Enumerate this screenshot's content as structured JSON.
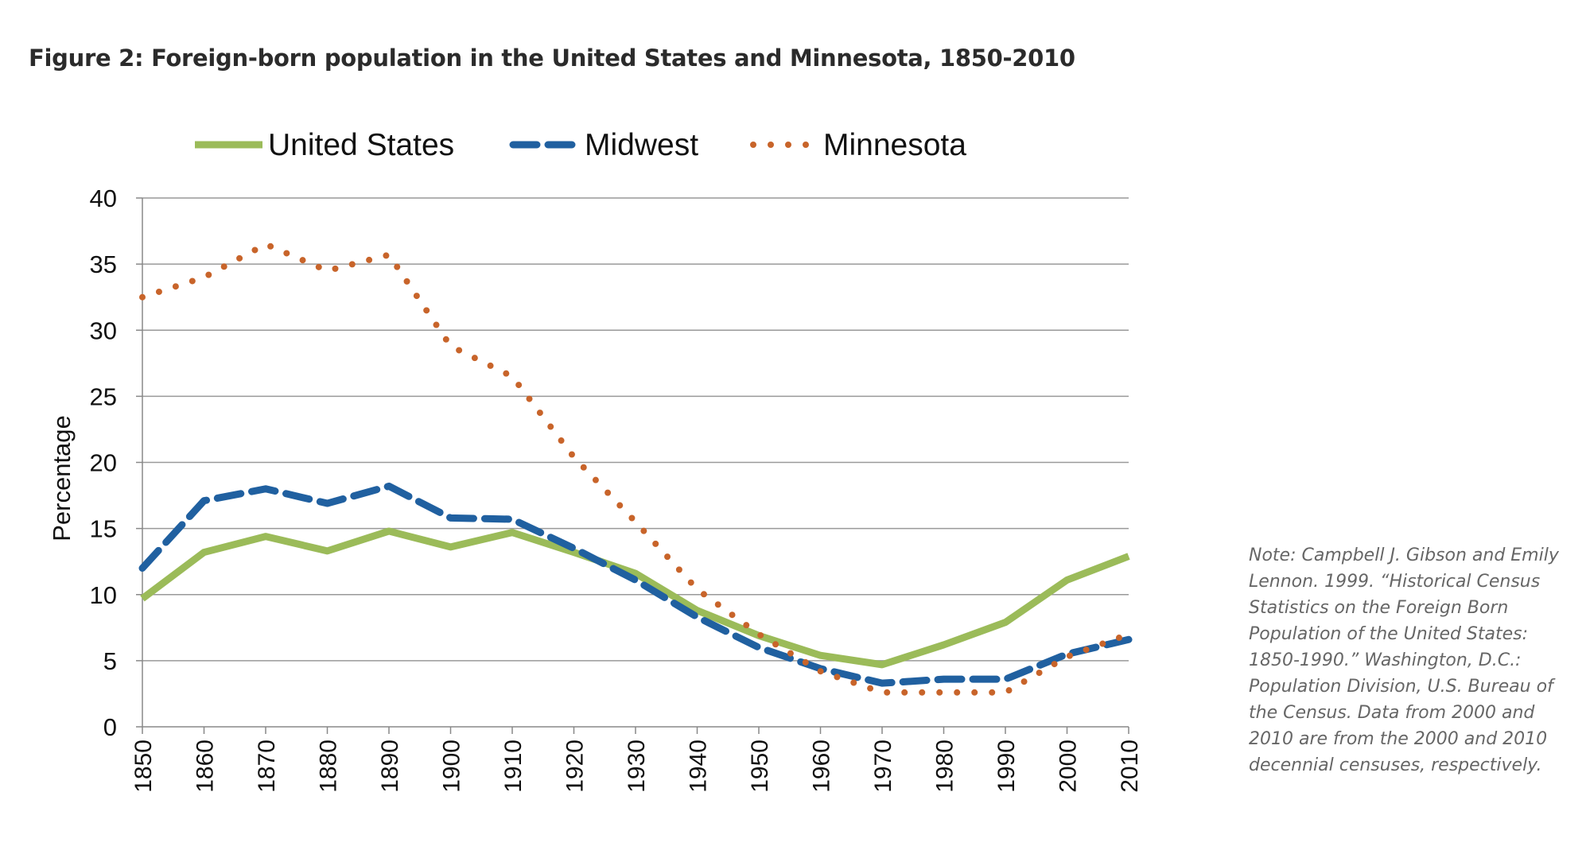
{
  "title": "Figure 2: Foreign-born population in the United States and Minnesota, 1850-2010",
  "note_lines": [
    "Note: Campbell J. Gibson and Emily",
    "Lennon. 1999. “Historical Census",
    "Statistics on the Foreign Born",
    "Population of the United States:",
    "1850-1990.” Washington, D.C.:",
    "Population Division, U.S. Bureau of",
    "the Census. Data from 2000 and",
    "2010 are from the 2000 and 2010",
    "decennial censuses, respectively."
  ],
  "chart_data": {
    "type": "line",
    "title": "Figure 2: Foreign-born population in the United States and Minnesota, 1850-2010",
    "xlabel": "",
    "ylabel": "Percentage",
    "x": [
      1850,
      1860,
      1870,
      1880,
      1890,
      1900,
      1910,
      1920,
      1930,
      1940,
      1950,
      1960,
      1970,
      1980,
      1990,
      2000,
      2010
    ],
    "ylim": [
      0,
      40
    ],
    "yticks": [
      0,
      5,
      10,
      15,
      20,
      25,
      30,
      35,
      40
    ],
    "grid": true,
    "legend": "top",
    "series": [
      {
        "name": "United States",
        "style": "solid",
        "color": "#9bbb59",
        "values": [
          9.7,
          13.2,
          14.4,
          13.3,
          14.8,
          13.6,
          14.7,
          13.2,
          11.6,
          8.8,
          6.9,
          5.4,
          4.7,
          6.2,
          7.9,
          11.1,
          12.9
        ]
      },
      {
        "name": "Midwest",
        "style": "dashed",
        "color": "#2060a0",
        "values": [
          12.0,
          17.1,
          18.0,
          16.9,
          18.2,
          15.8,
          15.7,
          13.5,
          11.1,
          8.3,
          6.0,
          4.4,
          3.3,
          3.6,
          3.6,
          5.5,
          6.6
        ]
      },
      {
        "name": "Minnesota",
        "style": "dotted",
        "color": "#c8642a",
        "values": [
          32.5,
          34.0,
          36.5,
          34.5,
          35.7,
          28.8,
          26.5,
          20.4,
          15.5,
          10.4,
          7.0,
          4.2,
          2.6,
          2.6,
          2.6,
          5.3,
          7.0
        ]
      }
    ]
  }
}
